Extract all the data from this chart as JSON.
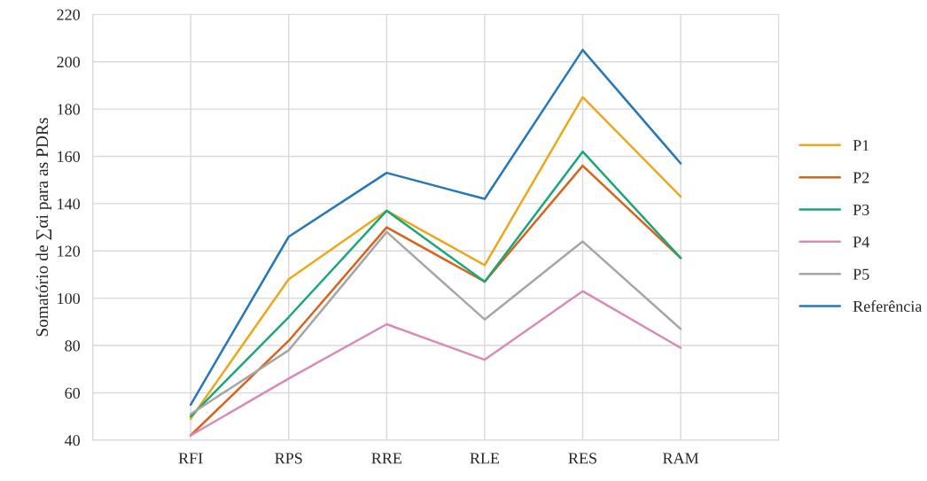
{
  "chart_data": {
    "type": "line",
    "ylabel": "Somatório de ∑αi para as PDRs",
    "categories": [
      null,
      "RFI",
      "RPS",
      "RRE",
      "RLE",
      "RES",
      "RAM",
      null
    ],
    "series": [
      {
        "name": "P1",
        "color": "#eba81b",
        "values": [
          null,
          49,
          108,
          137,
          114,
          185,
          143,
          null
        ]
      },
      {
        "name": "P2",
        "color": "#d9621c",
        "values": [
          null,
          42,
          82,
          130,
          107,
          156,
          117,
          null
        ]
      },
      {
        "name": "P3",
        "color": "#19a67a",
        "values": [
          null,
          50,
          92,
          137,
          107,
          162,
          117,
          null
        ]
      },
      {
        "name": "P4",
        "color": "#d98bb8",
        "values": [
          null,
          42,
          66,
          89,
          74,
          103,
          79,
          null
        ]
      },
      {
        "name": "P5",
        "color": "#a6a6a6",
        "values": [
          null,
          51,
          78,
          128,
          91,
          124,
          87,
          null
        ]
      },
      {
        "name": "Referência",
        "color": "#2678b8",
        "values": [
          null,
          55,
          126,
          153,
          142,
          205,
          157,
          null
        ]
      }
    ],
    "ylim": [
      40,
      220
    ],
    "yticks": [
      40,
      60,
      80,
      100,
      120,
      140,
      160,
      180,
      200,
      220
    ],
    "grid": true,
    "legend": "right",
    "marker": "none",
    "line_style": "solid"
  }
}
